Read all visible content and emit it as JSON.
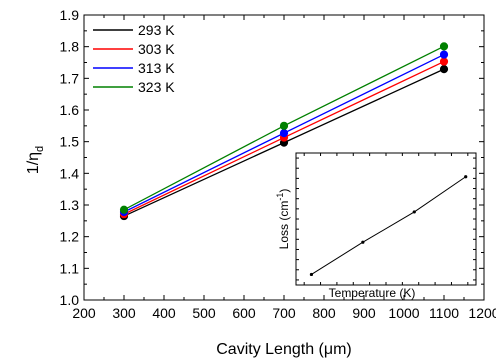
{
  "chart_data": [
    {
      "type": "line",
      "xlabel": "Cavity Length (μm)",
      "ylabel": "1/η",
      "ylabel_sub": "d",
      "xlim": [
        200,
        1200
      ],
      "ylim": [
        1.0,
        1.9
      ],
      "x_ticks": [
        "200",
        "300",
        "400",
        "500",
        "600",
        "700",
        "800",
        "900",
        "1000",
        "1100",
        "1200"
      ],
      "y_ticks": [
        "1.0",
        "1.1",
        "1.2",
        "1.3",
        "1.4",
        "1.5",
        "1.6",
        "1.7",
        "1.8",
        "1.9"
      ],
      "x": [
        300,
        700,
        1100
      ],
      "series": [
        {
          "name": "293 K",
          "color": "#000000",
          "values": [
            1.265,
            1.497,
            1.729
          ]
        },
        {
          "name": "303 K",
          "color": "#ff0000",
          "values": [
            1.271,
            1.513,
            1.753
          ]
        },
        {
          "name": "313 K",
          "color": "#0000ff",
          "values": [
            1.278,
            1.527,
            1.775
          ]
        },
        {
          "name": "323 K",
          "color": "#008000",
          "values": [
            1.285,
            1.55,
            1.801
          ]
        }
      ],
      "legend_position": "top-left",
      "grid": false
    },
    {
      "type": "line",
      "inset": true,
      "xlabel": "Temperature (K)",
      "ylabel": "Loss (cm",
      "ylabel_sup": "-1",
      "ylabel_close": ")",
      "x": [
        293,
        303,
        313,
        323
      ],
      "values": [
        0.0,
        0.33,
        0.64,
        1.0
      ],
      "grid": false
    }
  ]
}
